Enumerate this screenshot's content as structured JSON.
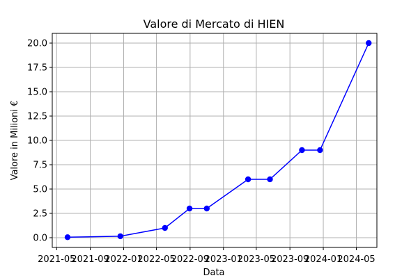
{
  "chart_data": {
    "type": "line",
    "title": "Valore di Mercato di HIEN",
    "xlabel": "Data",
    "ylabel": "Valore in Milioni €",
    "x": [
      "2021-06-10",
      "2021-12-20",
      "2022-06-01",
      "2022-08-30",
      "2022-11-01",
      "2023-04-01",
      "2023-06-20",
      "2023-10-15",
      "2023-12-20",
      "2024-06-15"
    ],
    "series": [
      {
        "values": [
          0.05,
          0.15,
          1.0,
          3.0,
          3.0,
          6.0,
          6.0,
          9.0,
          9.0,
          20.0
        ],
        "color": "#0000ff"
      }
    ],
    "xticks": [
      "2021-05",
      "2021-09",
      "2022-01",
      "2022-05",
      "2022-09",
      "2023-01",
      "2023-05",
      "2023-09",
      "2024-01",
      "2024-05"
    ],
    "yticks": [
      "0.0",
      "2.5",
      "5.0",
      "7.5",
      "10.0",
      "12.5",
      "15.0",
      "17.5",
      "20.0"
    ],
    "xlim": [
      "2021-04-15",
      "2024-07-15"
    ],
    "ylim": [
      -1.0,
      21.0
    ],
    "grid": true
  }
}
